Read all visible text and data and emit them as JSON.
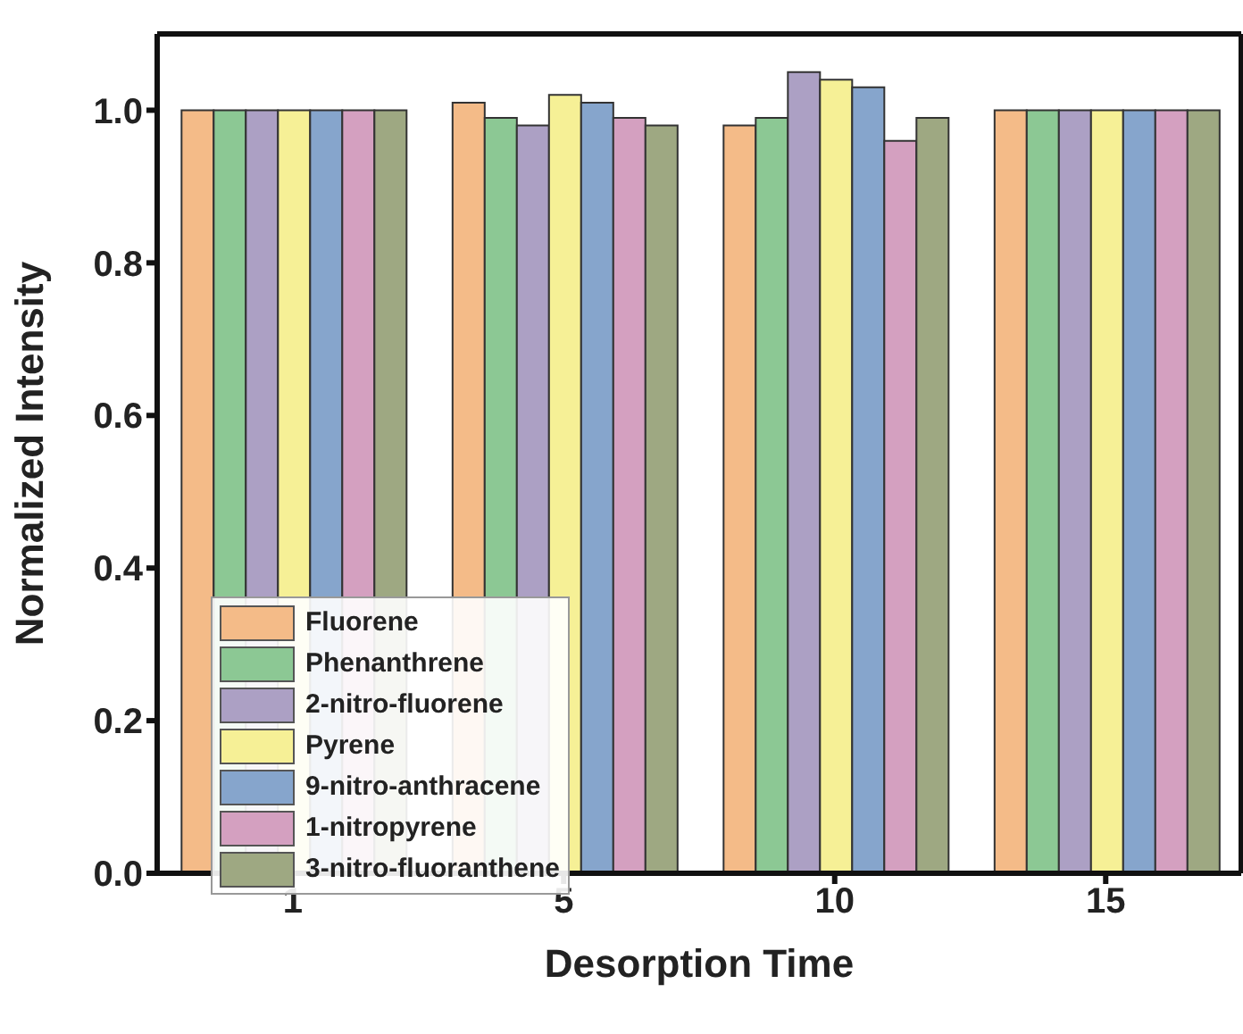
{
  "chart_data": {
    "type": "bar",
    "xlabel": "Desorption Time",
    "ylabel": "Normalized Intensity",
    "categories": [
      "1",
      "5",
      "10",
      "15"
    ],
    "series": [
      {
        "name": "Fluorene",
        "color": "#f4bb88",
        "values": [
          1.0,
          1.01,
          0.98,
          1.0
        ]
      },
      {
        "name": "Phenanthrene",
        "color": "#8cc894",
        "values": [
          1.0,
          0.99,
          0.99,
          1.0
        ]
      },
      {
        "name": "2-nitro-fluorene",
        "color": "#aca0c4",
        "values": [
          1.0,
          0.98,
          1.05,
          1.0
        ]
      },
      {
        "name": "Pyrene",
        "color": "#f6f096",
        "values": [
          1.0,
          1.02,
          1.04,
          1.0
        ]
      },
      {
        "name": "9-nitro-anthracene",
        "color": "#86a5cc",
        "values": [
          1.0,
          1.01,
          1.03,
          1.0
        ]
      },
      {
        "name": "1-nitropyrene",
        "color": "#d4a0c0",
        "values": [
          1.0,
          0.99,
          0.96,
          1.0
        ]
      },
      {
        "name": "3-nitro-fluoranthene",
        "color": "#9ea882",
        "values": [
          1.0,
          0.98,
          0.99,
          1.0
        ]
      }
    ],
    "ylim": [
      0,
      1.1
    ],
    "yticks": [
      {
        "value": 0,
        "label": "0.0"
      },
      {
        "value": 0.2,
        "label": "0.2"
      },
      {
        "value": 0.4,
        "label": "0.4"
      },
      {
        "value": 0.6,
        "label": "0.6"
      },
      {
        "value": 0.8,
        "label": "0.8"
      },
      {
        "value": 1.0,
        "label": "1.0"
      }
    ],
    "grid": false,
    "legend": "bottom left"
  }
}
